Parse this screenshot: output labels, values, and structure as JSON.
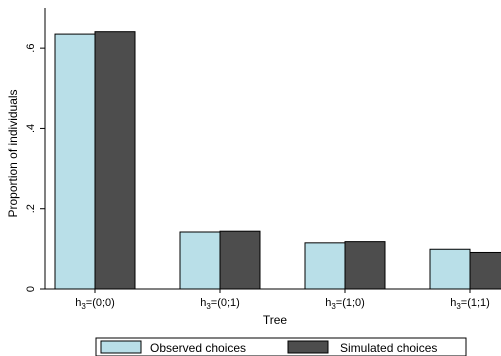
{
  "chart_data": {
    "type": "bar",
    "title": "",
    "xlabel": "Tree",
    "ylabel": "Proportion of individuals",
    "ylim": [
      0,
      0.7
    ],
    "yticks": [
      {
        "value": 0,
        "label": "0"
      },
      {
        "value": 0.2,
        "label": ".2"
      },
      {
        "value": 0.4,
        "label": ".4"
      },
      {
        "value": 0.6,
        "label": ".6"
      }
    ],
    "categories": [
      {
        "base": "h",
        "sub": "3",
        "rest": "=(0;0)"
      },
      {
        "base": "h",
        "sub": "3",
        "rest": "=(0;1)"
      },
      {
        "base": "h",
        "sub": "3",
        "rest": "=(1;0)"
      },
      {
        "base": "h",
        "sub": "3",
        "rest": "=(1;1)"
      }
    ],
    "series": [
      {
        "name": "Observed choices",
        "color": "#b9dfe8",
        "values": [
          0.635,
          0.142,
          0.115,
          0.099
        ]
      },
      {
        "name": "Simulated choices",
        "color": "#4d4d4d",
        "values": [
          0.641,
          0.144,
          0.118,
          0.091
        ]
      }
    ],
    "grid": false,
    "legend_position": "bottom"
  }
}
